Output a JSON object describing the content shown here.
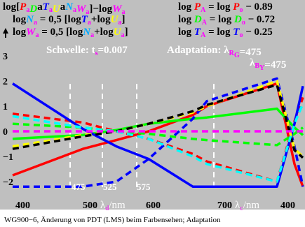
{
  "chart_data": {
    "type": "line",
    "caption": "WG900−6, Änderung von PDT (LMS) beim Farbensehen; Adaptation",
    "header": {
      "left_line1": [
        "log[",
        "P",
        "a",
        "D",
        "a",
        "T",
        "a",
        "U",
        "a",
        "N",
        "a",
        "W",
        "a",
        "]−log",
        "W",
        "a"
      ],
      "left_line2": [
        "log",
        "N",
        "a",
        " = 0,5 [log",
        "T",
        "a",
        "+log",
        "U",
        "a",
        "]"
      ],
      "left_line3": [
        "log",
        "W",
        "a",
        " = 0,5 [log",
        "N",
        "a",
        "+log",
        "U",
        "a",
        "]"
      ],
      "right_line1": [
        "log ",
        "P",
        "A",
        " = log ",
        "P",
        "o",
        " − 0.89"
      ],
      "right_line2": [
        "log ",
        "D",
        "A",
        " = log ",
        "D",
        "o",
        " − 0.72"
      ],
      "right_line3": [
        "log ",
        "T",
        "A",
        " = log ",
        "T",
        "o",
        " − 0.25"
      ],
      "threshold": [
        "Schwelle: t",
        "s",
        "=0.007"
      ],
      "adaptation": [
        "Adaptation: λ",
        "R",
        "G",
        "=475"
      ],
      "lambda_by": [
        "λ",
        "B",
        "Y",
        "=475"
      ]
    },
    "x_ticks": [
      "400",
      "500",
      "600",
      "700",
      "400"
    ],
    "x_label_d": [
      "λ",
      "d",
      "/nm"
    ],
    "x_label_c": [
      "λ",
      "c",
      "/nm"
    ],
    "inner_ticks": [
      "475",
      "525",
      "575"
    ],
    "y_ticks": [
      "3",
      "2",
      "1",
      "0",
      "−1",
      "−2"
    ],
    "x": [
      400,
      475,
      500,
      525,
      575,
      600,
      700,
      750,
      760
    ],
    "ylim": [
      -2.5,
      3.0
    ],
    "series": [
      {
        "color": "#ff0000",
        "style": "solid",
        "values": [
          -1.75,
          -0.7,
          -0.35,
          0.0,
          0.65,
          1.0,
          1.9,
          -1.3,
          -2.2
        ]
      },
      {
        "color": "#ff0000",
        "style": "dashed",
        "values": [
          0.7,
          0.35,
          0.0,
          -0.3,
          -0.9,
          -1.2,
          -2.0,
          0.4,
          1.35
        ]
      },
      {
        "color": "#00ff00",
        "style": "solid",
        "values": [
          -0.3,
          -0.15,
          0.05,
          0.3,
          0.5,
          0.55,
          0.9,
          0.15,
          -0.15
        ]
      },
      {
        "color": "#00ff00",
        "style": "dashed",
        "values": [
          0.3,
          0.15,
          0.0,
          -0.1,
          -0.3,
          -0.35,
          -0.55,
          -0.1,
          0.15
        ]
      },
      {
        "color": "#0000ff",
        "style": "solid",
        "values": [
          1.9,
          0.1,
          -0.6,
          -1.1,
          -2.2,
          -2.2,
          -2.2,
          0.3,
          1.8
        ]
      },
      {
        "color": "#0000ff",
        "style": "dashed",
        "values": [
          -2.2,
          -2.2,
          -2.0,
          -1.1,
          0.5,
          1.2,
          2.1,
          -0.6,
          -2.2
        ]
      },
      {
        "color": "#ffff00",
        "style": "dashed",
        "values": [
          -0.6,
          -0.15,
          0.0,
          0.3,
          0.75,
          1.0,
          2.0,
          -0.7,
          -1.0
        ]
      },
      {
        "color": "#000000",
        "style": "dashed",
        "values": [
          -0.7,
          -0.2,
          0.0,
          0.3,
          0.8,
          1.05,
          1.85,
          -0.75,
          -1.05
        ]
      },
      {
        "color": "#00ffff",
        "style": "dashed",
        "values": [
          0.6,
          0.15,
          0.0,
          -0.3,
          -1.0,
          -1.3,
          -2.0,
          0.3,
          1.1
        ]
      },
      {
        "color": "#ff00ff",
        "style": "dashed",
        "values": [
          0,
          0,
          0,
          0,
          0,
          0,
          0,
          0,
          0
        ]
      }
    ],
    "colors": {
      "background": "#ffffff",
      "plot": "#bfbfbf",
      "P": "#ff0000",
      "D": "#00ff00",
      "T": "#0000ff",
      "U": "#ffff00",
      "N": "#00aaff",
      "W": "#ff00ff",
      "sub": "#ff00ff"
    }
  }
}
